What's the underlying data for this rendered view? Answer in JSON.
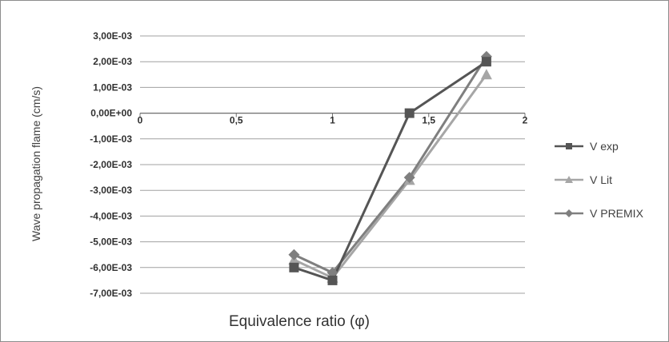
{
  "chart_data": {
    "type": "line",
    "xlabel": "Equivalence ratio (φ)",
    "ylabel": "Wave propagation flame (cm/s)",
    "xlim": [
      0,
      2
    ],
    "ylim": [
      -0.007,
      0.003
    ],
    "xticks": [
      0,
      0.5,
      1,
      1.5,
      2
    ],
    "xtick_labels": [
      "0",
      "0,5",
      "1",
      "1,5",
      "2"
    ],
    "yticks": [
      0.003,
      0.002,
      0.001,
      0,
      -0.001,
      -0.002,
      -0.003,
      -0.004,
      -0.005,
      -0.006,
      -0.007
    ],
    "ytick_labels": [
      "3,00E-03",
      "2,00E-03",
      "1,00E-03",
      "0,00E+00",
      "-1,00E-03",
      "-2,00E-03",
      "-3,00E-03",
      "-4,00E-03",
      "-5,00E-03",
      "-6,00E-03",
      "-7,00E-03"
    ],
    "grid": "horizontal",
    "legend_position": "right",
    "series": [
      {
        "name": "V exp",
        "legend_label": "V exp",
        "marker": "square",
        "color": "#555555",
        "x": [
          0.8,
          1.0,
          1.4,
          1.8
        ],
        "y": [
          -0.006,
          -0.0065,
          0.0,
          0.002
        ]
      },
      {
        "name": "V Lit",
        "legend_label": "V Lit",
        "marker": "triangle",
        "color": "#a6a6a6",
        "x": [
          0.8,
          1.0,
          1.4,
          1.8
        ],
        "y": [
          -0.0057,
          -0.0064,
          -0.0026,
          0.0015
        ]
      },
      {
        "name": "V PREMIX",
        "legend_label": "V PREMIX",
        "marker": "diamond",
        "color": "#7f7f7f",
        "x": [
          0.8,
          1.0,
          1.4,
          1.8
        ],
        "y": [
          -0.0055,
          -0.0062,
          -0.0025,
          0.0022
        ]
      }
    ]
  }
}
